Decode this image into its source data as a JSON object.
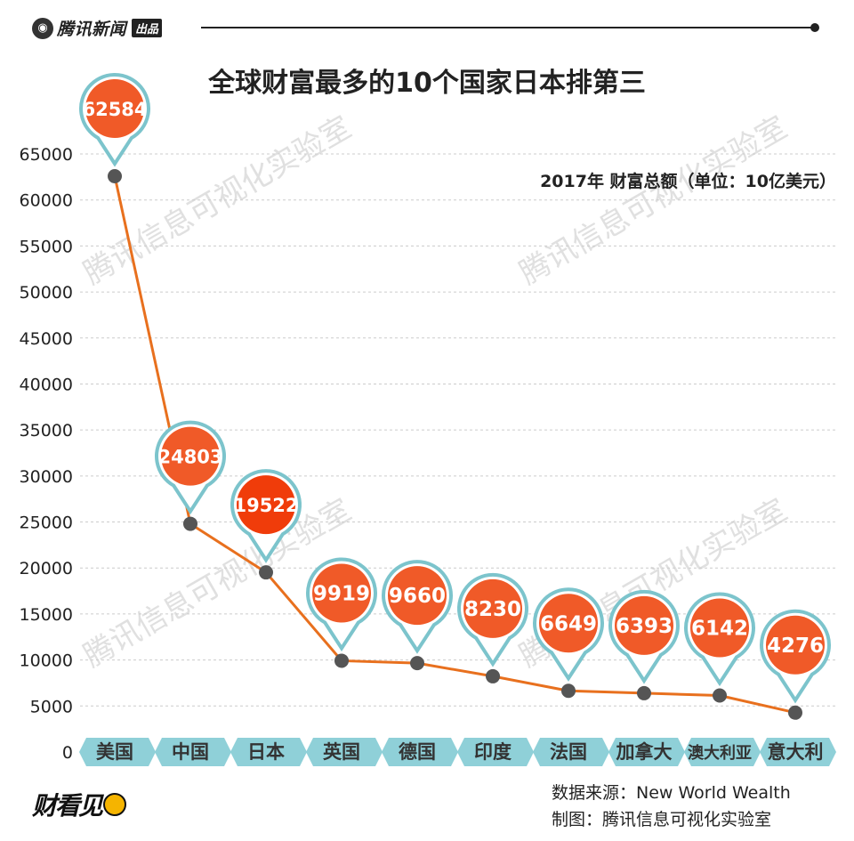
{
  "header": {
    "brand_name": "腾讯新闻",
    "brand_tag": "出品"
  },
  "title": "全球财富最多的10个国家日本排第三",
  "chart_data": {
    "type": "line",
    "title": "全球财富最多的10个国家日本排第三",
    "subtitle": "2017年 财富总额（单位：10亿美元）",
    "xlabel": "",
    "ylabel": "",
    "ylim": [
      0,
      65000
    ],
    "yticks": [
      0,
      5000,
      10000,
      15000,
      20000,
      25000,
      30000,
      35000,
      40000,
      45000,
      50000,
      55000,
      60000,
      65000
    ],
    "grid": true,
    "categories": [
      "美国",
      "中国",
      "日本",
      "英国",
      "德国",
      "印度",
      "法国",
      "加拿大",
      "澳大利亚",
      "意大利"
    ],
    "values": [
      62584,
      24803,
      19522,
      9919,
      9660,
      8230,
      6649,
      6393,
      6142,
      4276
    ],
    "data_labels": [
      "62584",
      "24803",
      "19522",
      "9919",
      "9660",
      "8230",
      "6649",
      "6393",
      "6142",
      "4276"
    ],
    "colors": {
      "line": "#e8701e",
      "marker": "#555555",
      "pin_fill": "#f05a28",
      "pin_fill_highlight": "#f03c0a",
      "pin_border": "#7cc4cc",
      "category_bg": "#8fd0d8",
      "grid": "#cccccc",
      "watermark": "#e0e0e0"
    },
    "highlight_index": 2
  },
  "watermark": "腾讯信息可视化实验室",
  "footer": {
    "logo_text": "财看见",
    "source_line": "数据来源：New World Wealth",
    "maker_line": "制图：腾讯信息可视化实验室"
  }
}
